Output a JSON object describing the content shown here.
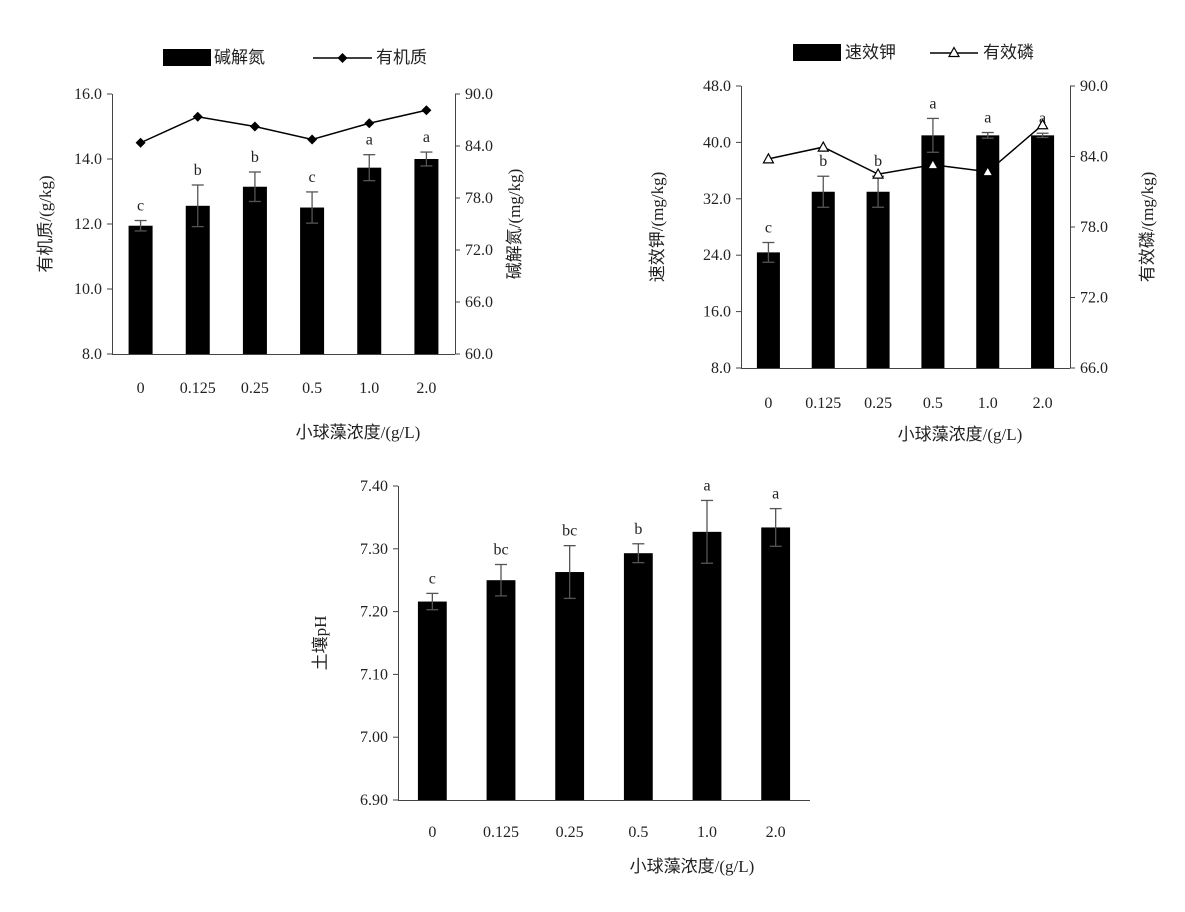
{
  "chart_data": [
    {
      "type": "bar",
      "categories": [
        "0",
        "0.125",
        "0.25",
        "0.5",
        "1.0",
        "2.0"
      ],
      "xlabel": "小球藻浓度/(g/L)",
      "ylabel_left": "有机质/(g/kg)",
      "ylabel_right": "碱解氮/(mg/kg)",
      "ylim_left": [
        8.0,
        16.0
      ],
      "ylim_right": [
        60.0,
        90.0
      ],
      "yticks_left": [
        "8.0",
        "10.0",
        "12.0",
        "14.0",
        "16.0"
      ],
      "yticks_right": [
        "60.0",
        "66.0",
        "72.0",
        "78.0",
        "84.0",
        "90.0"
      ],
      "legend_placement": "top",
      "series": [
        {
          "name": "碱解氮",
          "kind": "bar",
          "axis": "right",
          "values": [
            74.8,
            77.1,
            79.3,
            76.9,
            81.5,
            82.5
          ],
          "errors": [
            0.6,
            2.4,
            1.7,
            1.8,
            1.5,
            0.8
          ],
          "labels": [
            "c",
            "b",
            "b",
            "c",
            "a",
            "a"
          ]
        },
        {
          "name": "有机质",
          "kind": "line",
          "marker": "diamond",
          "axis": "left",
          "values": [
            14.5,
            15.3,
            15.0,
            14.6,
            15.1,
            15.5
          ]
        }
      ]
    },
    {
      "type": "bar",
      "categories": [
        "0",
        "0.125",
        "0.25",
        "0.5",
        "1.0",
        "2.0"
      ],
      "xlabel": "小球藻浓度/(g/L)",
      "ylabel_left": "速效钾/(mg/kg)",
      "ylabel_right": "有效磷/(mg/kg)",
      "ylim_left": [
        8.0,
        48.0
      ],
      "ylim_right": [
        66.0,
        90.0
      ],
      "yticks_left": [
        "8.0",
        "16.0",
        "24.0",
        "32.0",
        "40.0",
        "48.0"
      ],
      "yticks_right": [
        "66.0",
        "72.0",
        "78.0",
        "84.0",
        "90.0"
      ],
      "legend_placement": "top",
      "series": [
        {
          "name": "速效钾",
          "kind": "bar",
          "axis": "left",
          "values": [
            24.4,
            33.0,
            33.0,
            41.0,
            41.0,
            41.0
          ],
          "errors": [
            1.4,
            2.2,
            2.2,
            2.4,
            0.4,
            0.3
          ],
          "labels": [
            "c",
            "b",
            "b",
            "a",
            "a",
            "a"
          ]
        },
        {
          "name": "有效磷",
          "kind": "line",
          "marker": "triangle",
          "axis": "right",
          "values": [
            83.8,
            84.8,
            82.5,
            83.3,
            82.7,
            86.7
          ]
        }
      ]
    },
    {
      "type": "bar",
      "categories": [
        "0",
        "0.125",
        "0.25",
        "0.5",
        "1.0",
        "2.0"
      ],
      "xlabel": "小球藻浓度/(g/L)",
      "ylabel": "土壤pH",
      "ylim": [
        6.9,
        7.4
      ],
      "yticks": [
        "6.90",
        "7.00",
        "7.10",
        "7.20",
        "7.30",
        "7.40"
      ],
      "series": [
        {
          "name": "",
          "kind": "bar",
          "values": [
            7.216,
            7.25,
            7.263,
            7.293,
            7.327,
            7.334
          ],
          "errors": [
            0.013,
            0.025,
            0.042,
            0.015,
            0.05,
            0.03
          ],
          "labels": [
            "c",
            "bc",
            "bc",
            "b",
            "a",
            "a"
          ]
        }
      ]
    }
  ]
}
